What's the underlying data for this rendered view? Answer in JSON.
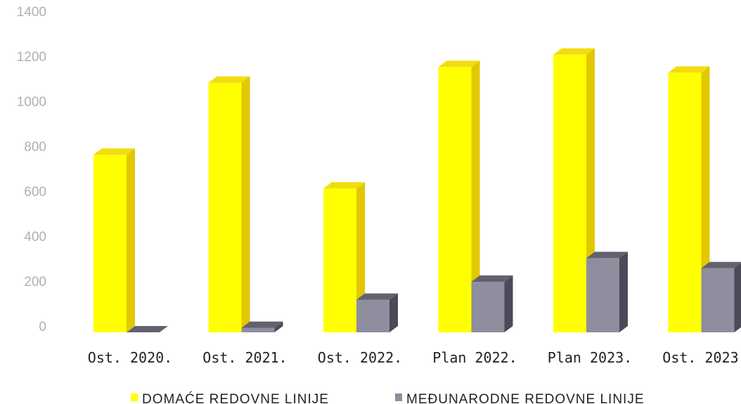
{
  "chart_data": {
    "type": "bar",
    "categories": [
      "Ost. 2020.",
      "Ost. 2021.",
      "Ost. 2022.",
      "Plan 2022.",
      "Plan 2023.",
      "Ost. 2023."
    ],
    "series": [
      {
        "name": "DOMAĆE REDOVNE LINIJE",
        "values": [
          790,
          1110,
          640,
          1180,
          1235,
          1155
        ],
        "color": "#ffff00",
        "side_color": "#e2c800",
        "top_color": "#f2dc10"
      },
      {
        "name": "MEĐUNARODNE REDOVNE LINIJE",
        "values": [
          0,
          20,
          145,
          225,
          330,
          285
        ],
        "color": "#8e8e9e",
        "side_color": "#4a4a58",
        "top_color": "#62626f"
      }
    ],
    "yticks": [
      "0",
      "200",
      "400",
      "600",
      "800",
      "1000",
      "1200",
      "1400"
    ],
    "ylim": [
      0,
      1400
    ],
    "grid": false,
    "legend": "bottom",
    "title": "",
    "xlabel": "",
    "ylabel": ""
  }
}
